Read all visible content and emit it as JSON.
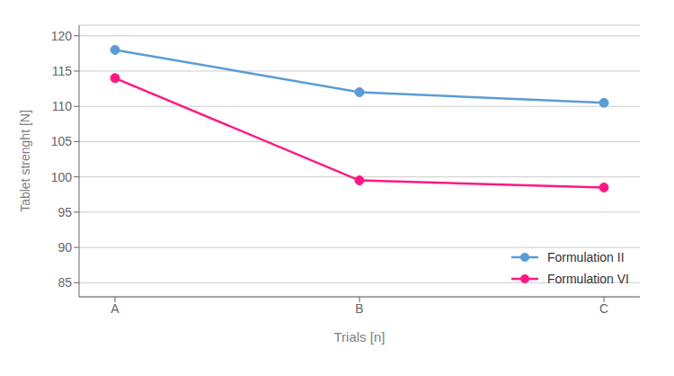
{
  "chart_data": {
    "type": "line",
    "categories": [
      "A",
      "B",
      "C"
    ],
    "series": [
      {
        "name": "Formulation II",
        "color": "#5B9BD5",
        "values": [
          118,
          112,
          110.5
        ],
        "marker": "circle"
      },
      {
        "name": "Formulation VI",
        "color": "#FF1783",
        "values": [
          114,
          99.5,
          98.5
        ],
        "marker": "circle"
      }
    ],
    "xlabel": "Trials [n]",
    "ylabel": "Tablet strenght [N]",
    "ylim": [
      83,
      121.5
    ],
    "yticks": [
      85,
      90,
      95,
      100,
      105,
      110,
      115,
      120
    ],
    "grid": true,
    "legend": "lower right"
  }
}
